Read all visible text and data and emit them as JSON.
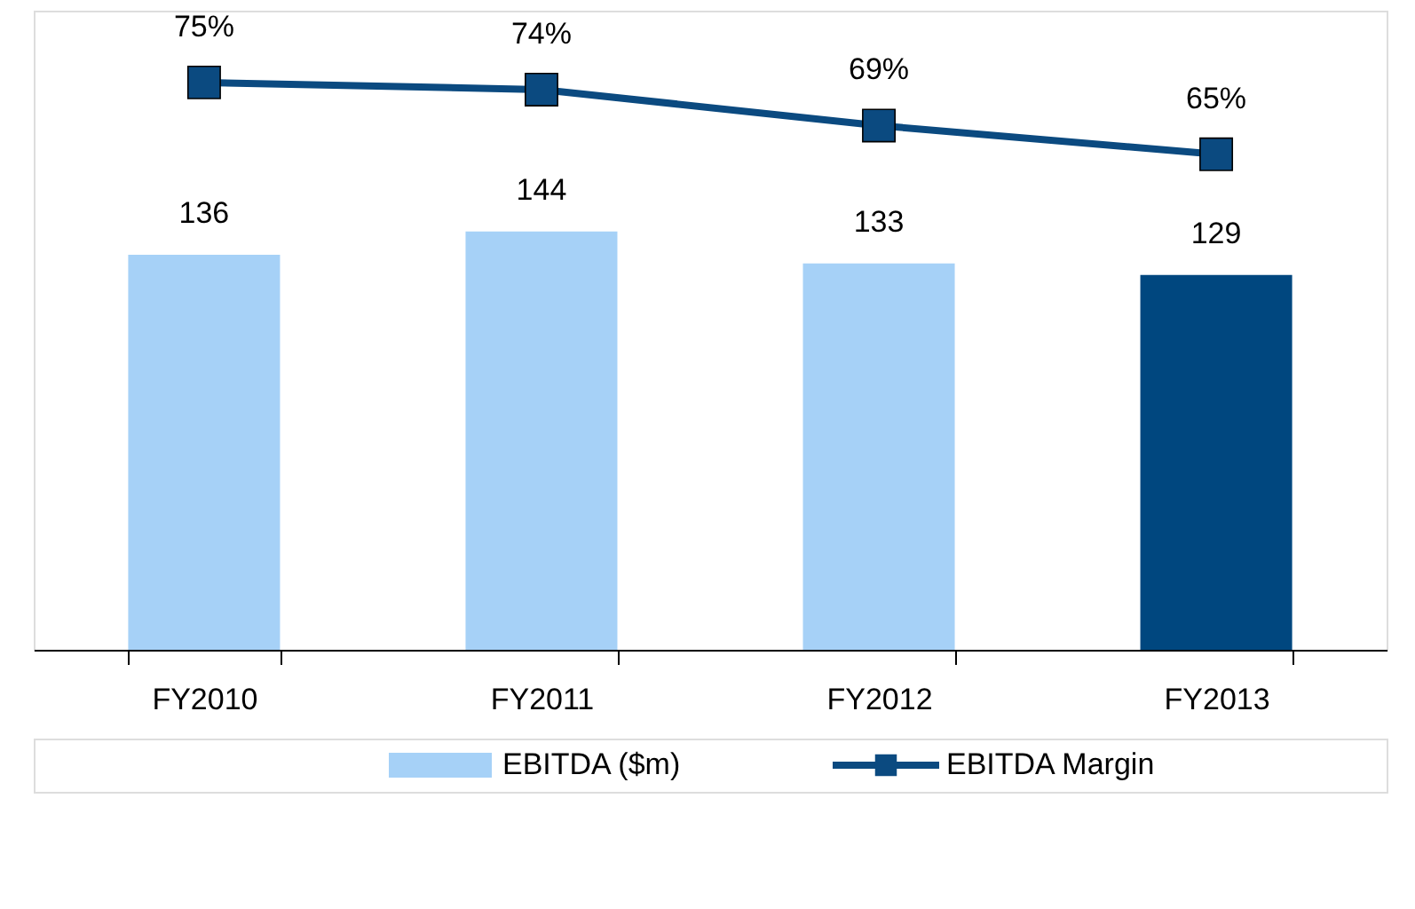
{
  "chart_data": {
    "type": "bar",
    "categories": [
      "FY2010",
      "FY2011",
      "FY2012",
      "FY2013"
    ],
    "series": [
      {
        "name": "EBITDA ($m)",
        "colors": [
          "#a6d1f7",
          "#a6d1f7",
          "#a6d1f7",
          "#00477f"
        ],
        "color": "#a6d1f7",
        "values": [
          136,
          144,
          133,
          129
        ],
        "value_labels": [
          "136",
          "144",
          "133",
          "129"
        ]
      },
      {
        "name": "EBITDA Margin",
        "type": "line",
        "axis": "y2",
        "color": "#0b4a80",
        "marker": "square",
        "values": [
          75,
          74,
          69,
          65
        ],
        "value_labels": [
          "75%",
          "74%",
          "69%",
          "65%"
        ]
      }
    ],
    "ylim": [
      0,
      220
    ],
    "y2lim": [
      -4,
      85
    ],
    "tick_labels": "x",
    "grid": false,
    "legend": "bottom"
  }
}
